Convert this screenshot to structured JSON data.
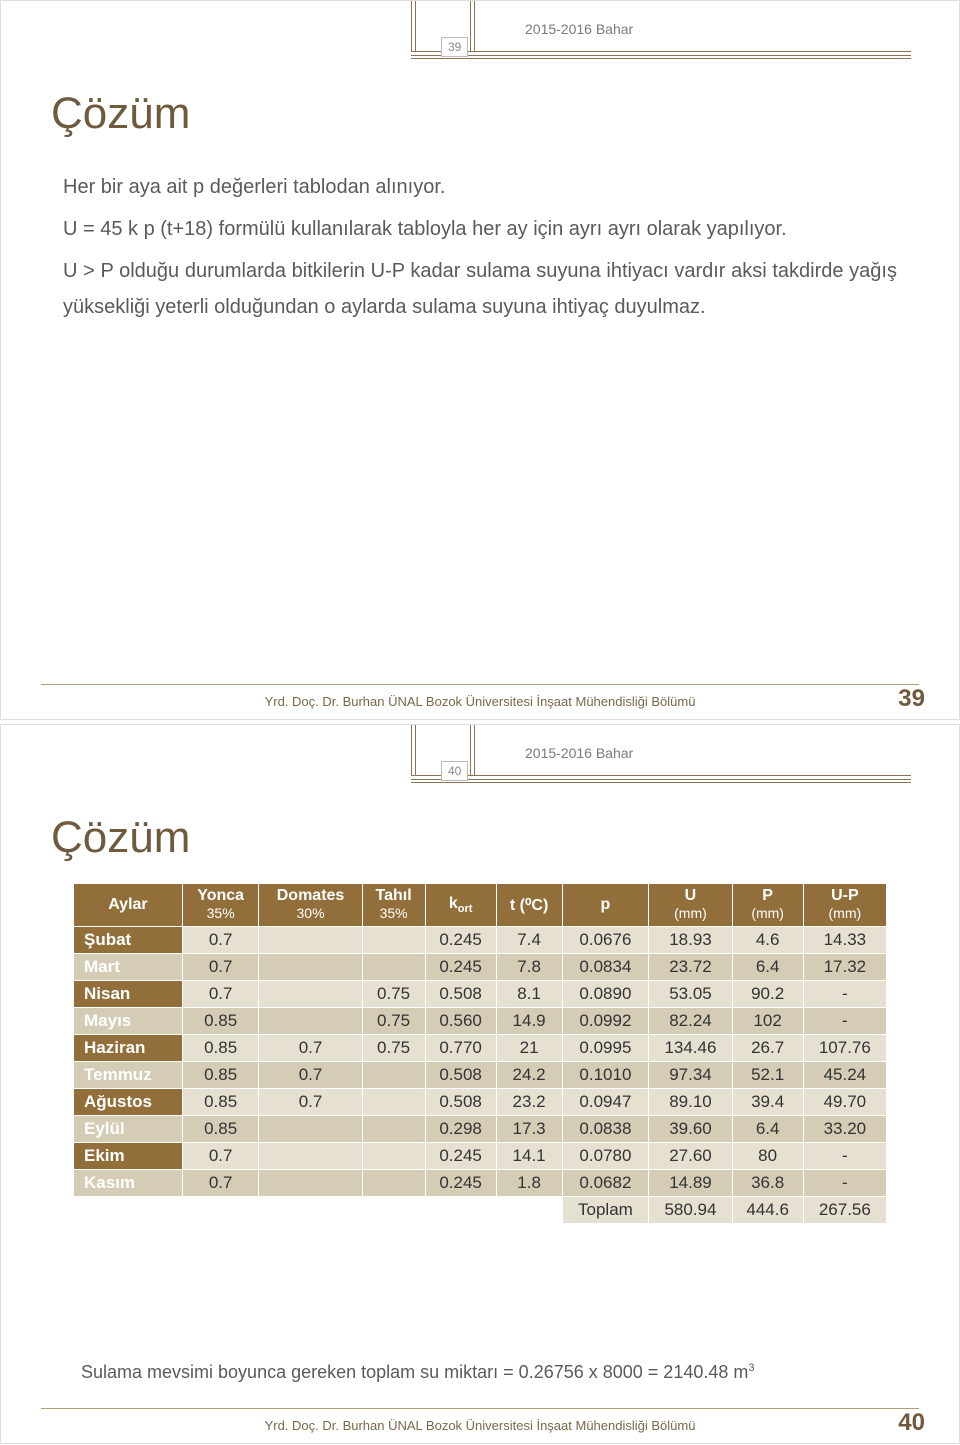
{
  "meta": {
    "term": "2015-2016 Bahar"
  },
  "slide39": {
    "num": "39",
    "title": "Çözüm",
    "p1": "Her bir aya ait p değerleri tablodan alınıyor.",
    "p2": "U = 45 k p (t+18)  formülü kullanılarak tabloyla her ay için ayrı ayrı olarak yapılıyor.",
    "p3": "U > P olduğu durumlarda bitkilerin U-P kadar sulama suyuna ihtiyacı vardır aksi takdirde yağış yüksekliği yeterli olduğundan o aylarda sulama suyuna ihtiyaç duyulmaz.",
    "footer": "Yrd. Doç. Dr. Burhan ÜNAL Bozok Üniversitesi İnşaat Mühendisliği Bölümü",
    "page": "39"
  },
  "slide40": {
    "num": "40",
    "title": "Çözüm",
    "footer": "Yrd. Doç. Dr. Burhan ÜNAL Bozok Üniversitesi İnşaat Mühendisliği Bölümü",
    "page": "40",
    "note": "Sulama mevsimi boyunca gereken toplam su miktarı = 0.26756 x 8000 = 2140.48 m",
    "note_sup": "3",
    "table": {
      "header_bg": "#926f3a",
      "header_fg": "#ffffff",
      "cell_bg_a": "#e6e0d1",
      "cell_bg_b": "#d4ccb5",
      "columns": [
        {
          "label": "Aylar"
        },
        {
          "label": "Yonca",
          "sub": "35%"
        },
        {
          "label": "Domates",
          "sub": "30%"
        },
        {
          "label": "Tahıl",
          "sub": "35%"
        },
        {
          "label": "k",
          "subscript": "ort"
        },
        {
          "label": "t (⁰C)"
        },
        {
          "label": "p"
        },
        {
          "label": "U",
          "sub": "(mm)"
        },
        {
          "label": "P",
          "sub": "(mm)"
        },
        {
          "label": "U-P",
          "sub": "(mm)"
        }
      ],
      "rows": [
        {
          "m": "Şubat",
          "y": "0.7",
          "d": "",
          "t": "",
          "k": "0.245",
          "tc": "7.4",
          "p": "0.0676",
          "u": "18.93",
          "pp": "4.6",
          "up": "14.33"
        },
        {
          "m": "Mart",
          "y": "0.7",
          "d": "",
          "t": "",
          "k": "0.245",
          "tc": "7.8",
          "p": "0.0834",
          "u": "23.72",
          "pp": "6.4",
          "up": "17.32"
        },
        {
          "m": "Nisan",
          "y": "0.7",
          "d": "",
          "t": "0.75",
          "k": "0.508",
          "tc": "8.1",
          "p": "0.0890",
          "u": "53.05",
          "pp": "90.2",
          "up": "-"
        },
        {
          "m": "Mayıs",
          "y": "0.85",
          "d": "",
          "t": "0.75",
          "k": "0.560",
          "tc": "14.9",
          "p": "0.0992",
          "u": "82.24",
          "pp": "102",
          "up": "-"
        },
        {
          "m": "Haziran",
          "y": "0.85",
          "d": "0.7",
          "t": "0.75",
          "k": "0.770",
          "tc": "21",
          "p": "0.0995",
          "u": "134.46",
          "pp": "26.7",
          "up": "107.76"
        },
        {
          "m": "Temmuz",
          "y": "0.85",
          "d": "0.7",
          "t": "",
          "k": "0.508",
          "tc": "24.2",
          "p": "0.1010",
          "u": "97.34",
          "pp": "52.1",
          "up": "45.24"
        },
        {
          "m": "Ağustos",
          "y": "0.85",
          "d": "0.7",
          "t": "",
          "k": "0.508",
          "tc": "23.2",
          "p": "0.0947",
          "u": "89.10",
          "pp": "39.4",
          "up": "49.70"
        },
        {
          "m": "Eylül",
          "y": "0.85",
          "d": "",
          "t": "",
          "k": "0.298",
          "tc": "17.3",
          "p": "0.0838",
          "u": "39.60",
          "pp": "6.4",
          "up": "33.20"
        },
        {
          "m": "Ekim",
          "y": "0.7",
          "d": "",
          "t": "",
          "k": "0.245",
          "tc": "14.1",
          "p": "0.0780",
          "u": "27.60",
          "pp": "80",
          "up": "-"
        },
        {
          "m": "Kasım",
          "y": "0.7",
          "d": "",
          "t": "",
          "k": "0.245",
          "tc": "1.8",
          "p": "0.0682",
          "u": "14.89",
          "pp": "36.8",
          "up": "-"
        }
      ],
      "totals": {
        "label": "Toplam",
        "u": "580.94",
        "pp": "444.6",
        "up": "267.56"
      }
    }
  }
}
